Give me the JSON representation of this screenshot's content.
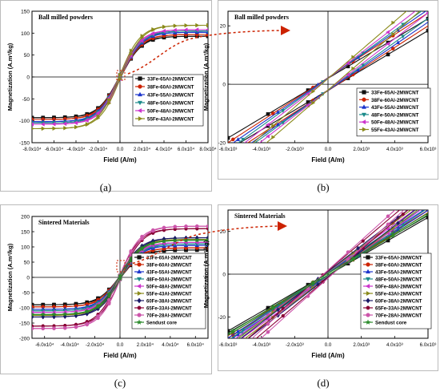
{
  "chart_data": [
    {
      "type": "line",
      "panel_label": "(a)",
      "title": "Ball milled powders",
      "xlabel": "Field (A/m)",
      "ylabel": "Magnetization (A.m²/kg)",
      "xlim": [
        -80000,
        80000
      ],
      "ylim": [
        -150,
        150
      ],
      "xticks": [
        -80000,
        -60000,
        -40000,
        -20000,
        0,
        20000,
        40000,
        60000,
        80000
      ],
      "xtick_labels": [
        "-8.0x10⁴",
        "-6.0x10⁴",
        "-4.0x10⁴",
        "-2.0x10⁴",
        "0.0",
        "2.0x10⁴",
        "4.0x10⁴",
        "6.0x10⁴",
        "8.0x10⁴"
      ],
      "yticks": [
        -150,
        -100,
        -50,
        0,
        50,
        100,
        150
      ],
      "ytick_labels": [
        "-150",
        "-100",
        "-50",
        "0",
        "50",
        "100",
        "150"
      ],
      "grid": false,
      "legend_position": "lower-right",
      "series": [
        {
          "name": "33Fe-65Al-2MWCNT",
          "color": "#111111",
          "marker": "square",
          "ms": 93
        },
        {
          "name": "38Fe-60Al-2MWCNT",
          "color": "#cc2200",
          "marker": "circle",
          "ms": 97
        },
        {
          "name": "43Fe-55Al-2MWCNT",
          "color": "#1a33cc",
          "marker": "triangle-up",
          "ms": 102
        },
        {
          "name": "48Fe-50Al-2MWCNT",
          "color": "#1a8a8a",
          "marker": "triangle-down",
          "ms": 105
        },
        {
          "name": "50Fe-48Al-2MWCNT",
          "color": "#cc33cc",
          "marker": "triangle-left",
          "ms": 108
        },
        {
          "name": "55Fe-43Al-2MWCNT",
          "color": "#8a8a1a",
          "marker": "triangle-right",
          "ms": 118
        }
      ]
    },
    {
      "type": "line",
      "panel_label": "(b)",
      "title": "Ball milled powders",
      "xlabel": "Field (A/m)",
      "ylabel": "Magnetization (A.m²/kg)",
      "xlim": [
        -6000,
        6000
      ],
      "ylim": [
        -20,
        25
      ],
      "xticks": [
        -6000,
        -4000,
        -2000,
        0,
        2000,
        4000,
        6000
      ],
      "xtick_labels": [
        "-6.0x10³",
        "-4.0x10³",
        "-2.0x10³",
        "0.0",
        "2.0x10³",
        "4.0x10³",
        "6.0x10³"
      ],
      "yticks": [
        -20,
        0,
        20
      ],
      "ytick_labels": [
        "-20",
        "0",
        "20"
      ],
      "grid": false,
      "legend_position": "lower-right",
      "series": [
        {
          "name": "33Fe-65Al-2MWCNT",
          "color": "#111111",
          "marker": "square",
          "slope": 0.0034,
          "hc": 600
        },
        {
          "name": "38Fe-60Al-2MWCNT",
          "color": "#cc2200",
          "marker": "circle",
          "slope": 0.0037,
          "hc": 600
        },
        {
          "name": "43Fe-55Al-2MWCNT",
          "color": "#1a33cc",
          "marker": "triangle-up",
          "slope": 0.0039,
          "hc": 550
        },
        {
          "name": "48Fe-50Al-2MWCNT",
          "color": "#1a8a8a",
          "marker": "triangle-down",
          "slope": 0.0041,
          "hc": 500
        },
        {
          "name": "50Fe-48Al-2MWCNT",
          "color": "#cc33cc",
          "marker": "triangle-left",
          "slope": 0.0044,
          "hc": 450
        },
        {
          "name": "55Fe-43Al-2MWCNT",
          "color": "#8a8a1a",
          "marker": "triangle-right",
          "slope": 0.0049,
          "hc": 400
        }
      ]
    },
    {
      "type": "line",
      "panel_label": "(c)",
      "title": "Sintered Materials",
      "xlabel": "Field (A/m)",
      "ylabel": "Magnetization (A.m²/kg)",
      "xlim": [
        -70000,
        70000
      ],
      "ylim": [
        -200,
        200
      ],
      "xticks": [
        -60000,
        -40000,
        -20000,
        0,
        20000,
        40000,
        60000
      ],
      "xtick_labels": [
        "-6.0x10⁴",
        "-4.0x10⁴",
        "-2.0x10⁴",
        "0.0",
        "2.0x10⁴",
        "4.0x10⁴",
        "6.0x10⁴"
      ],
      "yticks": [
        -200,
        -150,
        -100,
        -50,
        0,
        50,
        100,
        150,
        200
      ],
      "ytick_labels": [
        "-200",
        "-150",
        "-100",
        "-50",
        "0",
        "50",
        "100",
        "150",
        "200"
      ],
      "grid": false,
      "legend_position": "lower-right",
      "series": [
        {
          "name": "33Fe-65Al-2MWCNT",
          "color": "#111111",
          "marker": "square",
          "ms": 90
        },
        {
          "name": "38Fe-60Al-2MWCNT",
          "color": "#cc2200",
          "marker": "circle",
          "ms": 97
        },
        {
          "name": "43Fe-55Al-2MWCNT",
          "color": "#1a33cc",
          "marker": "triangle-up",
          "ms": 105
        },
        {
          "name": "48Fe-50Al-2MWCNT",
          "color": "#1a8a8a",
          "marker": "triangle-down",
          "ms": 110
        },
        {
          "name": "50Fe-48Al-2MWCNT",
          "color": "#cc33cc",
          "marker": "triangle-left",
          "ms": 115
        },
        {
          "name": "55Fe-43Al-2MWCNT",
          "color": "#8a8a1a",
          "marker": "triangle-right",
          "ms": 125
        },
        {
          "name": "60Fe-38Al-2MWCNT",
          "color": "#1a1a66",
          "marker": "diamond",
          "ms": 130
        },
        {
          "name": "65Fe-33Al-2MWCNT",
          "color": "#880033",
          "marker": "hexagon",
          "ms": 160
        },
        {
          "name": "70Fe-28Al-2MWCNT",
          "color": "#cc55aa",
          "marker": "circle",
          "ms": 168
        },
        {
          "name": "Sendust core",
          "color": "#2a8a2a",
          "marker": "star",
          "ms": 122
        }
      ]
    },
    {
      "type": "line",
      "panel_label": "(d)",
      "title": "Sintered Materials",
      "xlabel": "Field (A/m)",
      "ylabel": "Magnetization (A.m²/kg)",
      "xlim": [
        -6000,
        6000
      ],
      "ylim": [
        -30,
        30
      ],
      "xticks": [
        -6000,
        -4000,
        -2000,
        0,
        2000,
        4000,
        6000
      ],
      "xtick_labels": [
        "-6.0x10³",
        "-4.0x10³",
        "-2.0x10³",
        "0.0",
        "2.0x10³",
        "4.0x10³",
        "6.0x10³"
      ],
      "yticks": [
        -20,
        0,
        20
      ],
      "ytick_labels": [
        "-20",
        "0",
        "20"
      ],
      "grid": false,
      "legend_position": "lower-right",
      "series": [
        {
          "name": "33Fe-65Al-2MWCNT",
          "color": "#111111",
          "marker": "square",
          "slope": 0.0045,
          "hc": 100
        },
        {
          "name": "38Fe-60Al-2MWCNT",
          "color": "#cc2200",
          "marker": "circle",
          "slope": 0.0049,
          "hc": 120
        },
        {
          "name": "43Fe-55Al-2MWCNT",
          "color": "#1a33cc",
          "marker": "triangle-up",
          "slope": 0.0051,
          "hc": 140
        },
        {
          "name": "48Fe-50Al-2MWCNT",
          "color": "#1a8a8a",
          "marker": "triangle-down",
          "slope": 0.0053,
          "hc": 160
        },
        {
          "name": "50Fe-48Al-2MWCNT",
          "color": "#cc33cc",
          "marker": "triangle-left",
          "slope": 0.0056,
          "hc": 180
        },
        {
          "name": "55Fe-43Al-2MWCNT",
          "color": "#8a8a1a",
          "marker": "triangle-right",
          "slope": 0.0058,
          "hc": 200
        },
        {
          "name": "60Fe-38Al-2MWCNT",
          "color": "#1a1a66",
          "marker": "diamond",
          "slope": 0.006,
          "hc": 220
        },
        {
          "name": "65Fe-33Al-2MWCNT",
          "color": "#880033",
          "marker": "hexagon",
          "slope": 0.0066,
          "hc": 250
        },
        {
          "name": "70Fe-28Al-2MWCNT",
          "color": "#cc55aa",
          "marker": "circle",
          "slope": 0.007,
          "hc": 270
        },
        {
          "name": "Sendust core",
          "color": "#2a8a2a",
          "marker": "star",
          "slope": 0.0047,
          "hc": 80
        }
      ]
    }
  ],
  "arrow_color": "#cc2200"
}
